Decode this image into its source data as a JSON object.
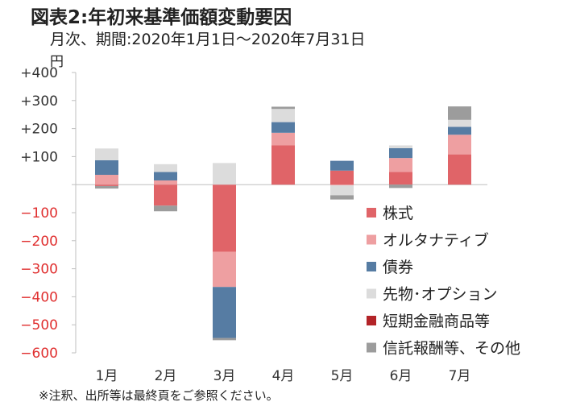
{
  "title": "図表2:年初来基準価額変動要因",
  "subtitle": "月次、期間:2020年1月1日～2020年7月31日",
  "unit": "円",
  "note": "※注釈、出所等は最終頁をご参照ください。",
  "colors": {
    "positive_tick": "#333333",
    "negative_tick": "#e03030"
  },
  "chart_data": {
    "type": "bar",
    "stacked": true,
    "ylim": [
      -600,
      400
    ],
    "yticks": [
      400,
      300,
      200,
      100,
      0,
      -100,
      -200,
      -300,
      -400,
      -500,
      -600
    ],
    "ytick_labels": [
      "+400",
      "+300",
      "+200",
      "+100",
      "",
      "−100",
      "−200",
      "−300",
      "−400",
      "−500",
      "−600"
    ],
    "categories": [
      "1月",
      "2月",
      "3月",
      "4月",
      "5月",
      "6月",
      "7月"
    ],
    "grid": false,
    "legend_position": "right",
    "series": [
      {
        "name": "株式",
        "color": "#e06468",
        "values": [
          -5,
          -75,
          -240,
          140,
          50,
          45,
          108
        ]
      },
      {
        "name": "オルタナティブ",
        "color": "#ee9fa1",
        "values": [
          35,
          15,
          -125,
          45,
          -3,
          50,
          70
        ]
      },
      {
        "name": "債券",
        "color": "#567ca3",
        "values": [
          52,
          30,
          -182,
          38,
          35,
          35,
          28
        ]
      },
      {
        "name": "先物･オプション",
        "color": "#dcdcdc",
        "values": [
          42,
          28,
          77,
          47,
          -35,
          10,
          25
        ]
      },
      {
        "name": "短期金融商品等",
        "color": "#b32428",
        "values": [
          0,
          0,
          0,
          0,
          0,
          0,
          0
        ]
      },
      {
        "name": "信託報酬等、その他",
        "color": "#9c9c9c",
        "values": [
          -9,
          -20,
          -8,
          8,
          -15,
          -12,
          48
        ]
      }
    ]
  }
}
